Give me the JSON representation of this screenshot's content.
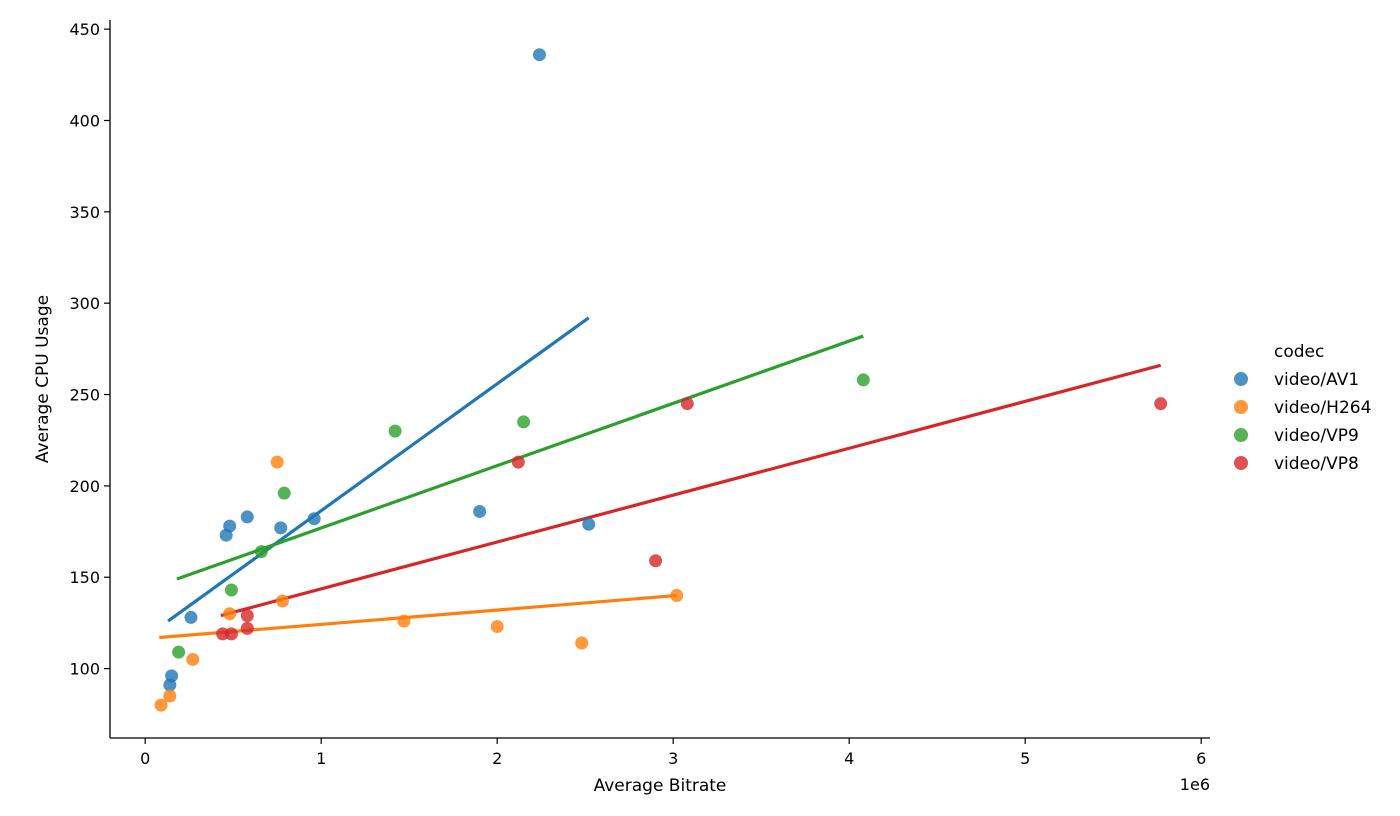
{
  "chart_data": {
    "type": "scatter",
    "xlabel": "Average Bitrate",
    "ylabel": "Average CPU Usage",
    "x_offset_label": "1e6",
    "xlim": [
      -200000,
      6050000
    ],
    "ylim": [
      62,
      455
    ],
    "x_ticks": [
      0,
      1000000,
      2000000,
      3000000,
      4000000,
      5000000,
      6000000
    ],
    "x_tick_labels": [
      "0",
      "1",
      "2",
      "3",
      "4",
      "5",
      "6"
    ],
    "y_ticks": [
      100,
      150,
      200,
      250,
      300,
      350,
      400,
      450
    ],
    "y_tick_labels": [
      "100",
      "150",
      "200",
      "250",
      "300",
      "350",
      "400",
      "450"
    ],
    "grid": false,
    "legend_title": "codec",
    "legend_position": "right",
    "series": [
      {
        "name": "video/AV1",
        "color": "#1f77b4",
        "points": [
          [
            140000,
            91
          ],
          [
            150000,
            96
          ],
          [
            260000,
            128
          ],
          [
            460000,
            173
          ],
          [
            480000,
            178
          ],
          [
            580000,
            183
          ],
          [
            770000,
            177
          ],
          [
            960000,
            182
          ],
          [
            1900000,
            186
          ],
          [
            2240000,
            436
          ],
          [
            2520000,
            179
          ]
        ],
        "regression": [
          [
            130000,
            126
          ],
          [
            2520000,
            292
          ]
        ]
      },
      {
        "name": "video/H264",
        "color": "#ff7f0e",
        "points": [
          [
            90000,
            80
          ],
          [
            140000,
            85
          ],
          [
            270000,
            105
          ],
          [
            480000,
            130
          ],
          [
            750000,
            213
          ],
          [
            780000,
            137
          ],
          [
            1470000,
            126
          ],
          [
            2000000,
            123
          ],
          [
            2480000,
            114
          ],
          [
            3020000,
            140
          ]
        ],
        "regression": [
          [
            80000,
            117
          ],
          [
            3020000,
            140
          ]
        ]
      },
      {
        "name": "video/VP9",
        "color": "#2ca02c",
        "points": [
          [
            190000,
            109
          ],
          [
            490000,
            143
          ],
          [
            660000,
            164
          ],
          [
            790000,
            196
          ],
          [
            1420000,
            230
          ],
          [
            2150000,
            235
          ],
          [
            4080000,
            258
          ]
        ],
        "regression": [
          [
            180000,
            149
          ],
          [
            4080000,
            282
          ]
        ]
      },
      {
        "name": "video/VP8",
        "color": "#d62728",
        "points": [
          [
            440000,
            119
          ],
          [
            490000,
            119
          ],
          [
            580000,
            122
          ],
          [
            580000,
            129
          ],
          [
            2120000,
            213
          ],
          [
            2900000,
            159
          ],
          [
            3080000,
            245
          ],
          [
            5770000,
            245
          ]
        ],
        "regression": [
          [
            430000,
            129
          ],
          [
            5770000,
            266
          ]
        ]
      }
    ]
  }
}
